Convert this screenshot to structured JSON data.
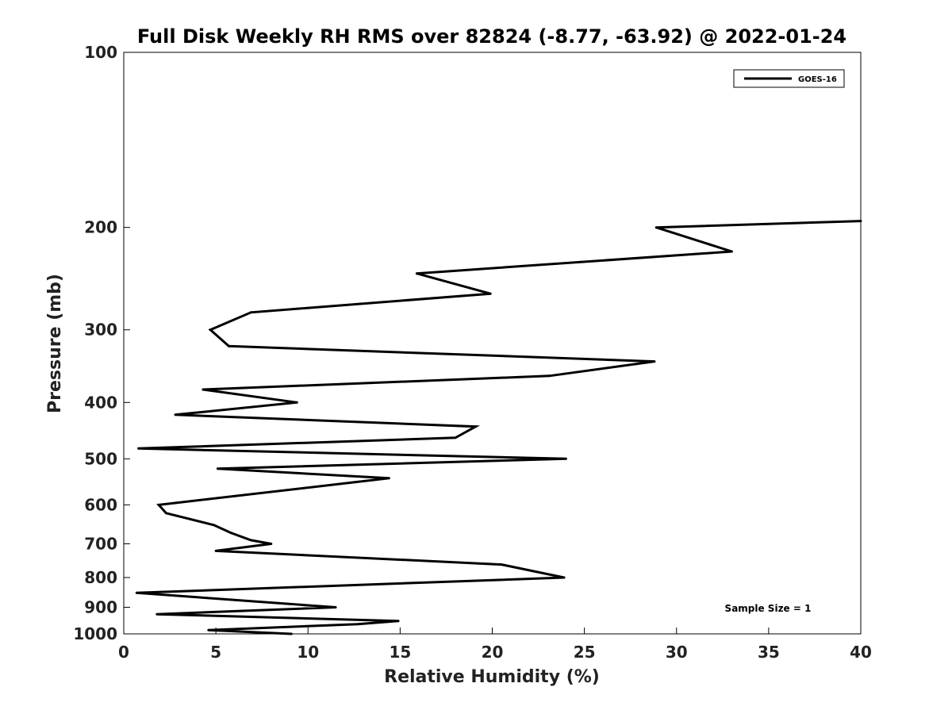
{
  "chart_data": {
    "type": "line",
    "title": "Full Disk Weekly RH RMS over 82824 (-8.77, -63.92) @ 2022-01-24",
    "xlabel": "Relative Humidity (%)",
    "ylabel": "Pressure (mb)",
    "xlim": [
      0,
      40
    ],
    "ylim": [
      1000,
      100
    ],
    "y_scale": "log",
    "y_inverted": true,
    "x_ticks": [
      0,
      5,
      10,
      15,
      20,
      25,
      30,
      35,
      40
    ],
    "y_ticks": [
      100,
      200,
      300,
      400,
      500,
      600,
      700,
      800,
      900,
      1000
    ],
    "grid": false,
    "legend_position": "top-right",
    "annotation": "Sample Size = 1",
    "series": [
      {
        "name": "GOES-16",
        "color": "#000000",
        "x": [
          40.0,
          28.9,
          33.0,
          15.9,
          19.9,
          6.9,
          4.7,
          5.7,
          28.8,
          23.1,
          4.3,
          9.4,
          2.8,
          19.1,
          18.0,
          0.8,
          24.0,
          5.1,
          14.4,
          1.9,
          2.3,
          4.9,
          5.8,
          6.9,
          8.0,
          5.0,
          20.5,
          23.9,
          0.7,
          11.5,
          1.8,
          14.9,
          12.7,
          4.6,
          9.1
        ],
        "y": [
          195,
          200,
          220,
          240,
          260,
          280,
          300,
          320,
          340,
          360,
          380,
          400,
          420,
          440,
          460,
          480,
          500,
          520,
          540,
          600,
          620,
          650,
          670,
          690,
          700,
          720,
          760,
          800,
          850,
          900,
          925,
          950,
          962,
          985,
          1000
        ]
      }
    ]
  }
}
